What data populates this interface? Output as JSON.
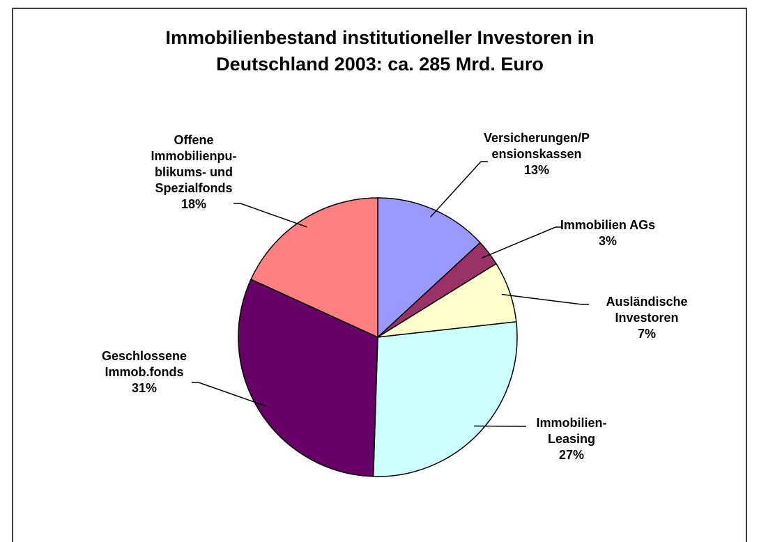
{
  "chart_data": {
    "type": "pie",
    "title": "Immobilienbestand institutioneller Investoren in\nDeutschland 2003: ca. 285 Mrd. Euro",
    "categories": [
      "Versicherungen/P\nensionskassen",
      "Immobilien AGs",
      "Ausländische\nInvestoren",
      "Immobilien-\nLeasing",
      "Geschlossene\nImmob.fonds",
      "Offene\nImmobilienpu-\nblikums- und\nSpezialfonds"
    ],
    "values": [
      13,
      3,
      7,
      27,
      31,
      18
    ],
    "value_labels": [
      "13%",
      "3%",
      "7%",
      "27%",
      "31%",
      "18%"
    ],
    "colors": [
      "#9999ff",
      "#993366",
      "#ffffcc",
      "#ccffff",
      "#660066",
      "#ff8080"
    ]
  }
}
